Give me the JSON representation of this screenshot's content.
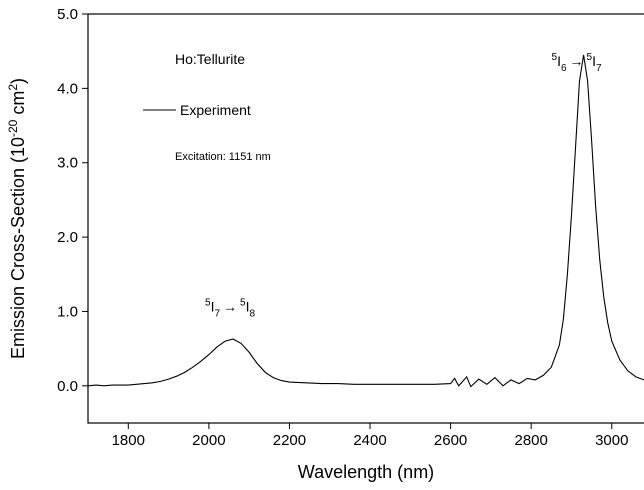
{
  "chart_data": {
    "type": "line",
    "xlabel": "Wavelength (nm)",
    "ylabel_parts": [
      "Emission Cross-Section (10",
      "-20",
      " cm",
      "2",
      ")"
    ],
    "xlim": [
      1700,
      3080
    ],
    "ylim": [
      -0.5,
      5.0
    ],
    "xticks": [
      1800,
      2000,
      2200,
      2400,
      2600,
      2800,
      3000
    ],
    "yticks": [
      {
        "value": 0,
        "label": "0.0"
      },
      {
        "value": 1,
        "label": "1.0"
      },
      {
        "value": 2,
        "label": "2.0"
      },
      {
        "value": 3,
        "label": "3.0"
      },
      {
        "value": 4,
        "label": "4.0"
      },
      {
        "value": 5,
        "label": "5.0"
      }
    ],
    "sample": "Ho:Tellurite",
    "excitation": "Excitation: 1151 nm",
    "annotations": [
      {
        "parts": [
          "5",
          "I",
          "7",
          "→",
          "5",
          "I",
          "8"
        ],
        "x": 2060,
        "y": 1.0
      },
      {
        "parts": [
          "5",
          "I",
          "6",
          "→",
          "5",
          "I",
          "7"
        ],
        "x": 2920,
        "y": 4.3
      }
    ],
    "series": [
      {
        "name": "Experiment",
        "color": "#000000",
        "x": [
          1700,
          1720,
          1740,
          1760,
          1780,
          1800,
          1820,
          1840,
          1860,
          1880,
          1900,
          1920,
          1940,
          1960,
          1980,
          2000,
          2020,
          2040,
          2060,
          2080,
          2100,
          2120,
          2140,
          2160,
          2180,
          2200,
          2240,
          2280,
          2320,
          2360,
          2400,
          2440,
          2480,
          2520,
          2560,
          2600,
          2610,
          2620,
          2640,
          2650,
          2670,
          2690,
          2710,
          2730,
          2750,
          2770,
          2790,
          2810,
          2830,
          2850,
          2870,
          2880,
          2890,
          2900,
          2910,
          2920,
          2930,
          2940,
          2950,
          2960,
          2970,
          2980,
          2990,
          3000,
          3020,
          3040,
          3060,
          3080
        ],
        "values": [
          0.0,
          0.01,
          0.0,
          0.01,
          0.01,
          0.01,
          0.02,
          0.03,
          0.04,
          0.06,
          0.09,
          0.13,
          0.18,
          0.25,
          0.33,
          0.42,
          0.52,
          0.6,
          0.63,
          0.57,
          0.45,
          0.3,
          0.18,
          0.11,
          0.07,
          0.05,
          0.04,
          0.03,
          0.03,
          0.02,
          0.02,
          0.02,
          0.02,
          0.02,
          0.02,
          0.03,
          0.1,
          0.0,
          0.12,
          -0.01,
          0.09,
          0.02,
          0.11,
          0.0,
          0.08,
          0.03,
          0.1,
          0.08,
          0.14,
          0.25,
          0.55,
          0.9,
          1.5,
          2.3,
          3.2,
          4.1,
          4.45,
          4.1,
          3.3,
          2.4,
          1.7,
          1.2,
          0.85,
          0.6,
          0.35,
          0.2,
          0.12,
          0.08
        ]
      }
    ]
  }
}
